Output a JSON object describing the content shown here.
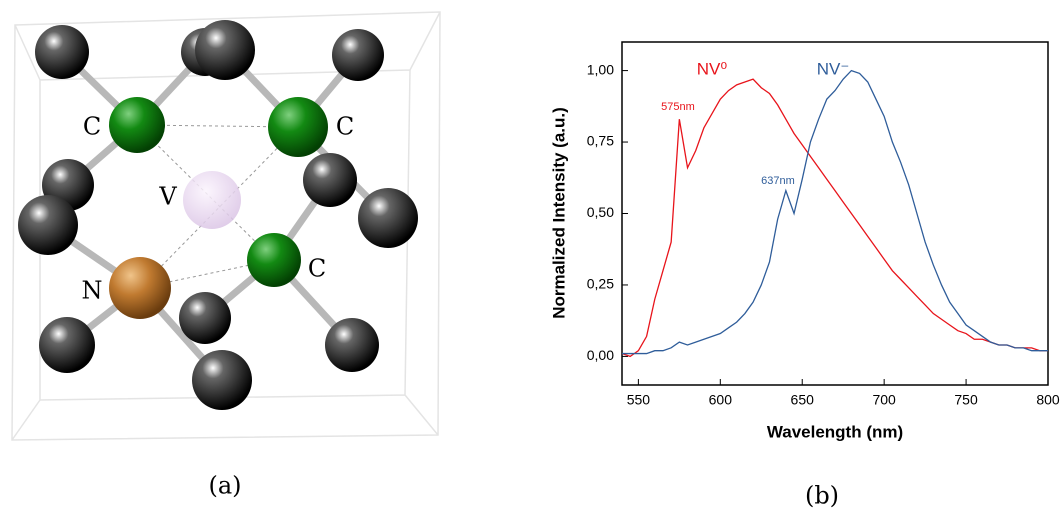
{
  "figure_a": {
    "labels": [
      "C",
      "C",
      "V",
      "C",
      "N"
    ],
    "caption": "(a)"
  },
  "chart_data": {
    "type": "line",
    "x_label": "Wavelength (nm)",
    "y_label": "Normalized Intensity (a.u.)",
    "x": [
      540,
      545,
      550,
      555,
      560,
      565,
      570,
      575,
      580,
      585,
      590,
      595,
      600,
      605,
      610,
      615,
      620,
      625,
      630,
      635,
      640,
      645,
      650,
      655,
      660,
      665,
      670,
      675,
      680,
      685,
      690,
      695,
      700,
      705,
      710,
      715,
      720,
      725,
      730,
      735,
      740,
      745,
      750,
      755,
      760,
      765,
      770,
      775,
      780,
      785,
      790,
      795,
      800
    ],
    "series": [
      {
        "name": "NV⁰",
        "color": "#e8141b",
        "annotation": "575nm",
        "values": [
          0.01,
          0.0,
          0.02,
          0.07,
          0.2,
          0.3,
          0.4,
          0.83,
          0.66,
          0.72,
          0.8,
          0.85,
          0.9,
          0.93,
          0.95,
          0.96,
          0.97,
          0.94,
          0.92,
          0.88,
          0.83,
          0.78,
          0.74,
          0.7,
          0.66,
          0.62,
          0.58,
          0.54,
          0.5,
          0.46,
          0.42,
          0.38,
          0.34,
          0.3,
          0.27,
          0.24,
          0.21,
          0.18,
          0.15,
          0.13,
          0.11,
          0.09,
          0.08,
          0.06,
          0.06,
          0.05,
          0.04,
          0.04,
          0.03,
          0.03,
          0.03,
          0.02,
          0.02
        ]
      },
      {
        "name": "NV⁻",
        "color": "#2f5d9a",
        "annotation": "637nm",
        "values": [
          0.01,
          0.01,
          0.01,
          0.01,
          0.02,
          0.02,
          0.03,
          0.05,
          0.04,
          0.05,
          0.06,
          0.07,
          0.08,
          0.1,
          0.12,
          0.15,
          0.19,
          0.25,
          0.33,
          0.48,
          0.58,
          0.5,
          0.62,
          0.75,
          0.83,
          0.9,
          0.93,
          0.97,
          1.0,
          0.99,
          0.96,
          0.9,
          0.84,
          0.75,
          0.68,
          0.6,
          0.5,
          0.4,
          0.32,
          0.25,
          0.19,
          0.15,
          0.11,
          0.09,
          0.07,
          0.05,
          0.04,
          0.04,
          0.03,
          0.03,
          0.02,
          0.02,
          0.02
        ]
      }
    ],
    "xlim": [
      540,
      800
    ],
    "xticks": [
      550,
      600,
      650,
      700,
      750,
      800
    ],
    "ylim": [
      -0.1,
      1.1
    ],
    "yticks": [
      {
        "value": 0,
        "label": "0,00"
      },
      {
        "value": 0.25,
        "label": "0,25"
      },
      {
        "value": 0.5,
        "label": "0,50"
      },
      {
        "value": 0.75,
        "label": "0,75"
      },
      {
        "value": 1,
        "label": "1,00"
      }
    ],
    "caption": "(b)"
  }
}
